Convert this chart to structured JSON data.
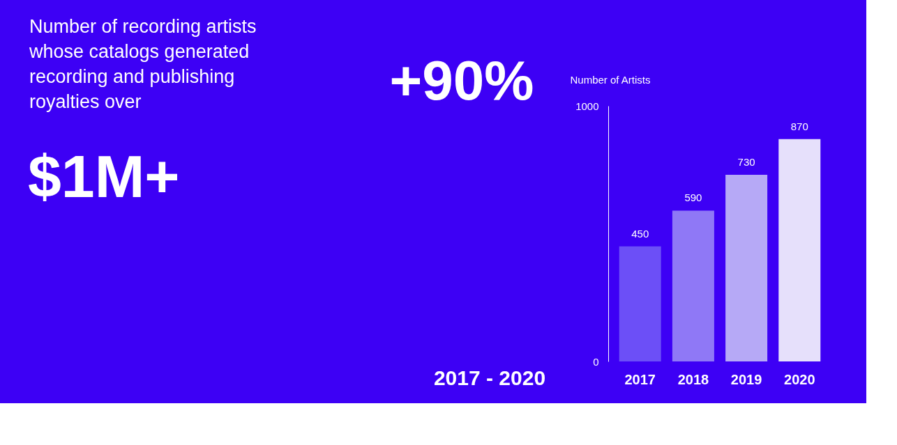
{
  "chart_data": {
    "type": "bar",
    "title": "Number of recording artists whose catalogs generated recording and publishing royalties over",
    "subtitle": "$1M+",
    "annotations": [
      "+90%",
      "2017 - 2020"
    ],
    "categories": [
      "2017",
      "2018",
      "2019",
      "2020"
    ],
    "values": [
      450,
      590,
      730,
      870
    ],
    "colors": [
      "#6c4ff7",
      "#8f78f6",
      "#b6a9f6",
      "#e6e0fb"
    ],
    "ylabel": "Number of Artists",
    "ylim": [
      0,
      1000
    ],
    "yticks": [
      0,
      1000
    ],
    "grid": false,
    "data_labels": true
  }
}
